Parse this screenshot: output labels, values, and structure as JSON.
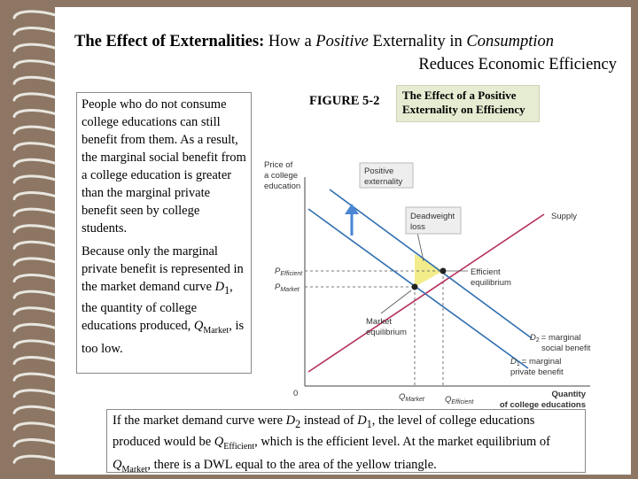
{
  "title": {
    "bold_part": "The Effect of Externalities:",
    "part1": " How a ",
    "italic1": "Positive",
    "part2": " Externality in ",
    "italic2": "Consumption",
    "line2": "Reduces Economic Efficiency"
  },
  "left_text": {
    "para1": "People who do not consume college educations can still benefit from them. As a result, the marginal social benefit from a college education is greater than the marginal private benefit seen by college students.",
    "para2_a": "Because only the marginal private benefit is represented in the market demand curve ",
    "para2_d": "D",
    "para2_d_sub": "1",
    "para2_b": ", the quantity of college educations produced, ",
    "para2_q": "Q",
    "para2_q_sub": "Market",
    "para2_c": ", is too low."
  },
  "figure": {
    "label": "FIGURE 5-2",
    "title": "The Effect of a Positive Externality on Efficiency"
  },
  "chart": {
    "y_axis_title": [
      "Price of",
      "a college",
      "education"
    ],
    "x_axis_title": [
      "Quantity",
      "of college educations"
    ],
    "origin": "0",
    "p_efficient": "P",
    "p_efficient_sub": "Efficient",
    "p_market": "P",
    "p_market_sub": "Market",
    "q_market": "Q",
    "q_market_sub": "Market",
    "q_efficient": "Q",
    "q_efficient_sub": "Efficient",
    "callout_positive": [
      "Positive",
      "externality"
    ],
    "callout_dwl": [
      "Deadweight",
      "loss"
    ],
    "supply_label": "Supply",
    "efficient_eq": [
      "Efficient",
      "equilibrium"
    ],
    "market_eq": [
      "Market",
      "equilibrium"
    ],
    "d2_label": [
      "= marginal",
      "social benefit"
    ],
    "d2": "D",
    "d2_sub": "2",
    "d1_label": [
      "= marginal",
      "private benefit"
    ],
    "d1": "D",
    "d1_sub": "1",
    "colors": {
      "supply": "#b5305a",
      "demand": "#2f6fb0",
      "dwl": "#f3ec8a",
      "arrow": "#4a86d4",
      "callout_bg": "#eeeeee"
    }
  },
  "bottom_text": {
    "a": "If the market demand curve were ",
    "d2": "D",
    "d2_sub": "2",
    "b": " instead of ",
    "d1": "D",
    "d1_sub": "1",
    "c": ", the level of college educations produced would be ",
    "q1": "Q",
    "q1_sub": "Efficient",
    "d": ", which is the efficient level. At the market equilibrium of ",
    "q2": "Q",
    "q2_sub": "Market",
    "e": ", there is a DWL equal to the area of the yellow triangle."
  }
}
